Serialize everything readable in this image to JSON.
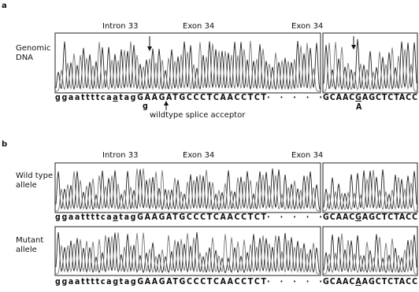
{
  "panel_a": {
    "label": "a",
    "headers": [
      "Intron 33",
      "Exon 34",
      "Exon 34"
    ],
    "row": {
      "label": [
        "Genomic",
        "DNA"
      ],
      "seq_left": {
        "pre": "ggaattttca",
        "mark": "a",
        "post": "tagGAAGATGCCCTCAACCTCT"
      },
      "dots": "·····",
      "seq_right": {
        "pre": "GCAAC",
        "mark": "G",
        "post": "AGCTCTACC"
      }
    },
    "variants": [
      "g",
      "A"
    ],
    "annotation": "wildtype splice acceptor"
  },
  "panel_b": {
    "label": "b",
    "headers": [
      "Intron 33",
      "Exon 34",
      "Exon 34"
    ],
    "rows": [
      {
        "label": [
          "Wild type",
          "allele"
        ],
        "seq_left": {
          "pre": "ggaattttca",
          "mark": "a",
          "post": "tagGAAGATGCCCTCAACCTCT"
        },
        "dots": "·····",
        "seq_right": {
          "pre": "GCAAC",
          "mark": "G",
          "post": "AGCTCTACC"
        }
      },
      {
        "label": [
          "Mutant",
          "allele"
        ],
        "seq_left": {
          "pre": "ggaattttca",
          "mark": "g",
          "post": "tagGAAGATGCCCTCAACCTCT"
        },
        "dots": "·····",
        "seq_right": {
          "pre": "GCAAC",
          "mark": "A",
          "post": "AGCTCTACC"
        }
      }
    ]
  }
}
